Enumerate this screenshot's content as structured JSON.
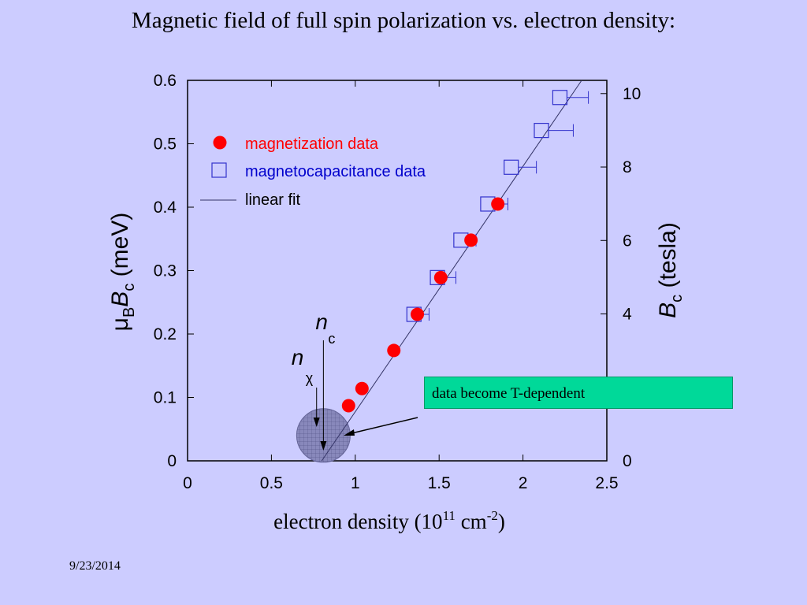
{
  "slide": {
    "title": "Magnetic field of full spin polarization vs. electron density:",
    "date": "9/23/2014",
    "callout": "data become T-dependent"
  },
  "colors": {
    "background": "#ccccff",
    "magnetization": "#ff0000",
    "magnetocapacitance": "#3333cc",
    "fit_line": "#333366",
    "callout_fill": "#00d999",
    "shaded_region": "#8888bb"
  },
  "chart_data": {
    "type": "scatter",
    "xlabel_prefix": "electron density (10",
    "xlabel_exp1": "11",
    "xlabel_mid": " cm",
    "xlabel_exp2": "-2",
    "xlabel_suffix": ")",
    "ylabel_mu": "μ",
    "ylabel_sub_b": "B",
    "ylabel_b": "B",
    "ylabel_sub_c": "c",
    "ylabel_unit": " (meV)",
    "y2label_b": "B",
    "y2label_sub": "c",
    "y2label_unit": " (tesla)",
    "xlim": [
      0,
      2.5
    ],
    "ylim": [
      0,
      0.6
    ],
    "y2lim": [
      0,
      10.36
    ],
    "xticks": [
      0,
      0.5,
      1,
      1.5,
      2,
      2.5
    ],
    "xtick_labels": [
      "0",
      "0.5",
      "1",
      "1.5",
      "2",
      "2.5"
    ],
    "yticks": [
      0,
      0.1,
      0.2,
      0.3,
      0.4,
      0.5,
      0.6
    ],
    "ytick_labels": [
      "0",
      "0.1",
      "0.2",
      "0.3",
      "0.4",
      "0.5",
      "0.6"
    ],
    "y2ticks": [
      0,
      4,
      6,
      8,
      10
    ],
    "y2tick_labels": [
      "0",
      "4",
      "6",
      "8",
      "10"
    ],
    "legend_position": "top-left",
    "series": [
      {
        "name": "magnetization data",
        "marker": "filled-circle",
        "x": [
          0.96,
          1.04,
          1.23,
          1.37,
          1.51,
          1.69,
          1.85
        ],
        "y": [
          0.087,
          0.114,
          0.174,
          0.231,
          0.289,
          0.348,
          0.405
        ]
      },
      {
        "name": "magnetocapacitance data",
        "marker": "open-square",
        "x": [
          1.35,
          1.49,
          1.63,
          1.79,
          1.93,
          2.11,
          2.22
        ],
        "y": [
          0.231,
          0.289,
          0.348,
          0.405,
          0.463,
          0.521,
          0.573
        ],
        "xerr_plus": [
          0.09,
          0.11,
          0.09,
          0.12,
          0.15,
          0.19,
          0.17
        ]
      },
      {
        "name": "linear fit",
        "marker": "line",
        "x": [
          0.8,
          2.35
        ],
        "y": [
          0.0,
          0.6
        ]
      }
    ],
    "annotations": {
      "nc_label": "n",
      "nc_sub": "c",
      "nc_x": 0.81,
      "nchi_label": "n",
      "nchi_sub": "χ",
      "nchi_x": 0.76,
      "shaded_center": [
        0.81,
        0.04
      ]
    }
  }
}
